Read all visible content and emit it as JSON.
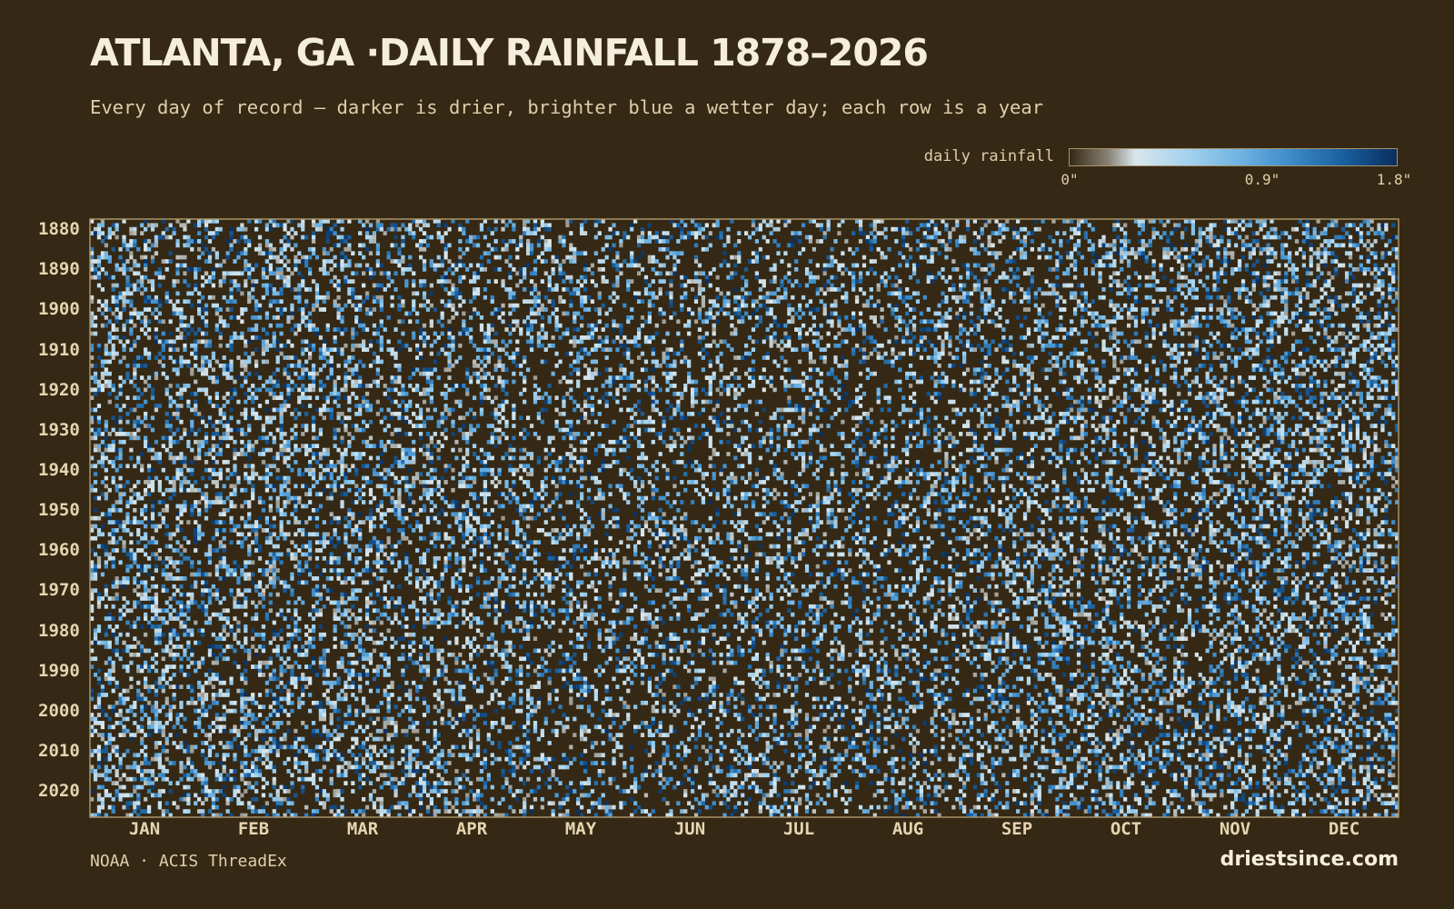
{
  "chart_data": {
    "type": "heatmap",
    "title": "ATLANTA, GA ·DAILY RAINFALL 1878–2026",
    "subtitle": "Every day of record — darker is drier, brighter blue a wetter day; each row is a year",
    "y_range": [
      1878,
      2026
    ],
    "y_ticks": [
      "1880",
      "1890",
      "1900",
      "1910",
      "1920",
      "1930",
      "1940",
      "1950",
      "1960",
      "1970",
      "1980",
      "1990",
      "2000",
      "2010",
      "2020"
    ],
    "x_ticks": [
      "JAN",
      "FEB",
      "MAR",
      "APR",
      "MAY",
      "JUN",
      "JUL",
      "AUG",
      "SEP",
      "OCT",
      "NOV",
      "DEC"
    ],
    "colorbar": {
      "label": "daily rainfall",
      "ticks": [
        "0\"",
        "0.9\"",
        "1.8\""
      ],
      "range": [
        0,
        1.8
      ]
    },
    "colors": {
      "background": "#352915",
      "frame": "#a8926a",
      "dry": "#352915",
      "wet": "#0a2e5e"
    },
    "source": "NOAA · ACIS ThreadEx",
    "brand": "driestsince.com"
  }
}
